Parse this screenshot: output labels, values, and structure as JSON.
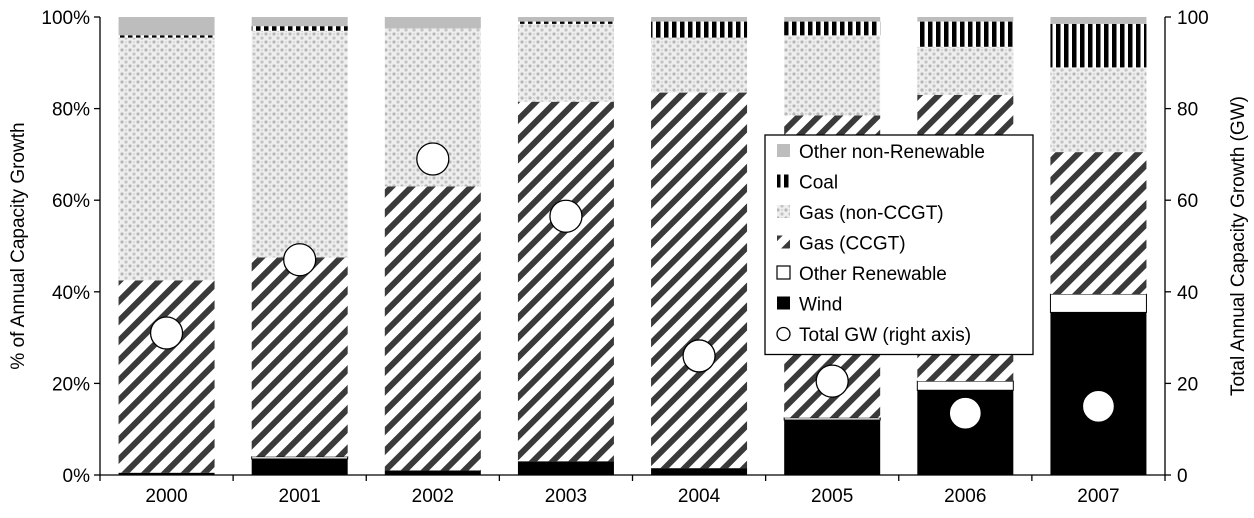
{
  "chart_data": {
    "type": "bar",
    "stacked": true,
    "categories": [
      "2000",
      "2001",
      "2002",
      "2003",
      "2004",
      "2005",
      "2006",
      "2007"
    ],
    "ylabel": "% of Annual Capacity Growth",
    "y2label": "Total Annual Capacity Growth (GW)",
    "ylim": [
      0,
      100
    ],
    "y2lim": [
      0,
      100
    ],
    "yticks": [
      "0%",
      "20%",
      "40%",
      "60%",
      "80%",
      "100%"
    ],
    "y2ticks": [
      "0",
      "20",
      "40",
      "60",
      "80",
      "100"
    ],
    "grid": false,
    "legend_position": "center-right",
    "series": [
      {
        "name": "Wind",
        "pattern": "solid-black",
        "values": [
          0.5,
          3.5,
          1,
          3,
          1.5,
          12,
          18.5,
          35.5
        ]
      },
      {
        "name": "Other Renewable",
        "pattern": "hollow",
        "values": [
          0,
          0.5,
          0,
          0,
          0,
          0.5,
          2,
          4
        ]
      },
      {
        "name": "Gas (CCGT)",
        "pattern": "diagonal-stripes",
        "values": [
          42,
          43.5,
          62,
          78.5,
          82,
          66,
          62.5,
          31
        ]
      },
      {
        "name": "Gas (non-CCGT)",
        "pattern": "grey-dots",
        "values": [
          53,
          49.5,
          34.5,
          17,
          12,
          17.5,
          10.5,
          18.5
        ]
      },
      {
        "name": "Coal",
        "pattern": "vertical-bars",
        "values": [
          0.5,
          1,
          0,
          0.5,
          3.5,
          3,
          5.5,
          9.5
        ]
      },
      {
        "name": "Other non-Renewable",
        "pattern": "solid-grey",
        "values": [
          4,
          2,
          2.5,
          1,
          1,
          1,
          1,
          1.5
        ]
      }
    ],
    "markers": {
      "name": "Total GW (right axis)",
      "axis": "right",
      "values": [
        31,
        47,
        69,
        56.5,
        26,
        20.5,
        13.5,
        15
      ]
    },
    "legend_order": [
      "Other non-Renewable",
      "Coal",
      "Gas (non-CCGT)",
      "Gas (CCGT)",
      "Other Renewable",
      "Wind",
      "Total GW (right axis)"
    ]
  }
}
